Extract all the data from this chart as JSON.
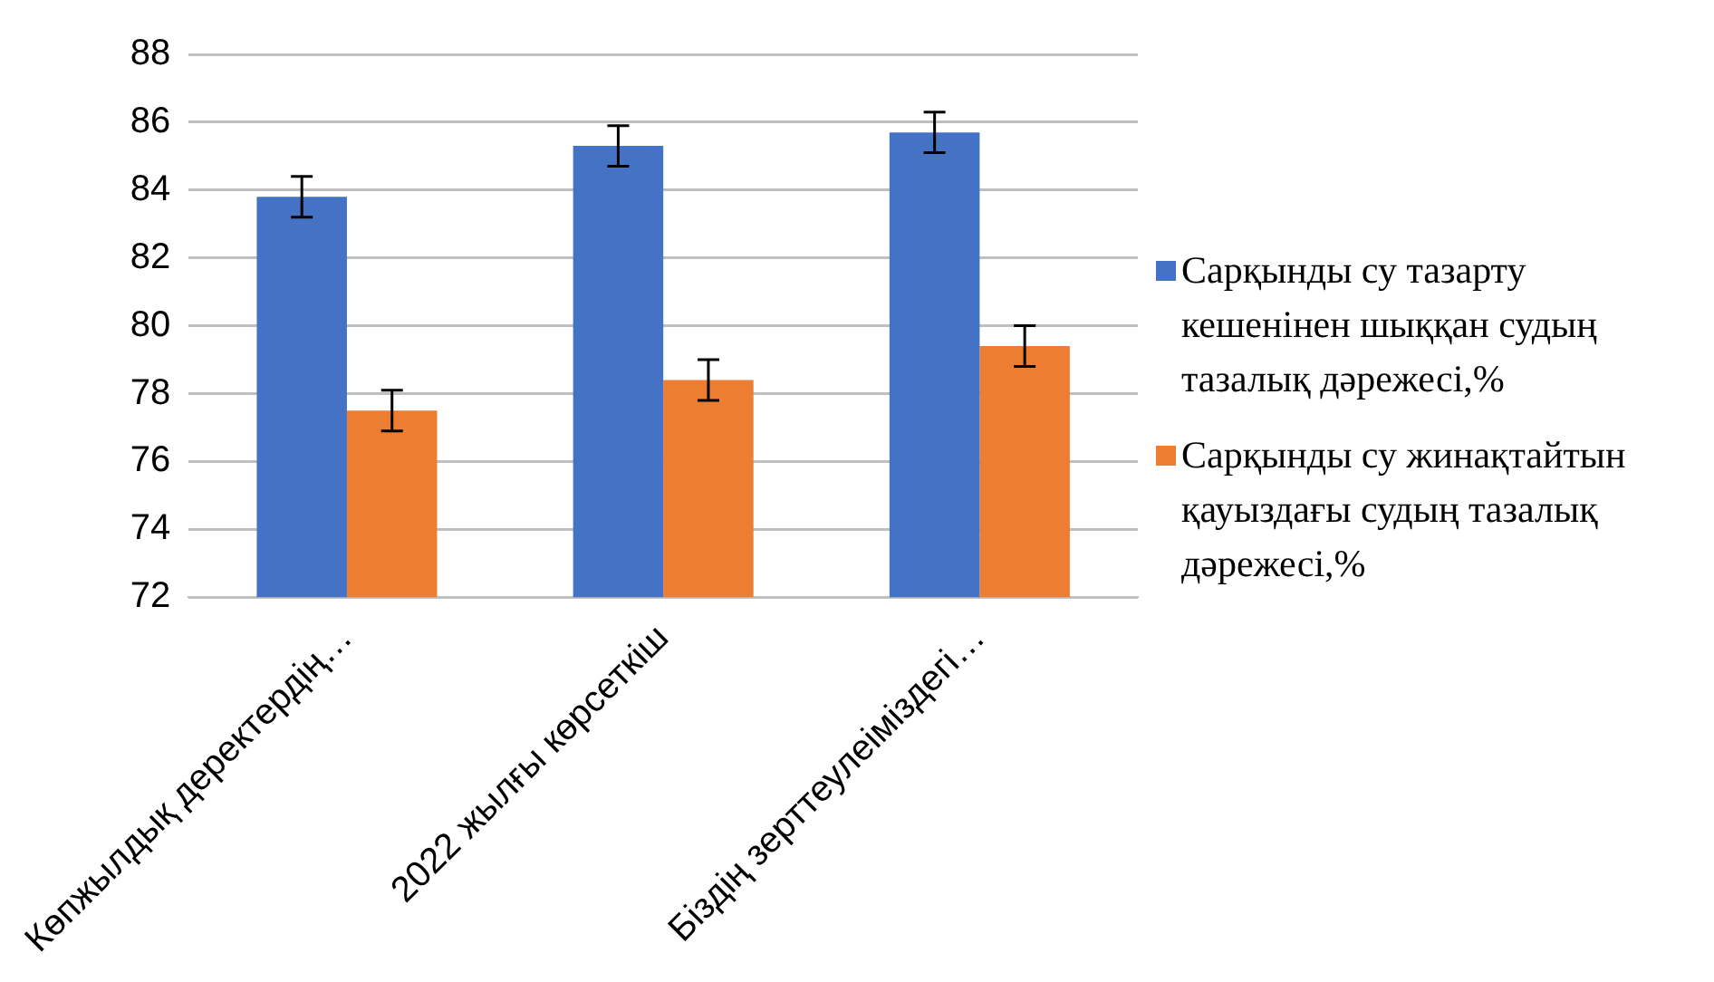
{
  "chart_data": {
    "type": "bar",
    "categories": [
      "Көпжылдық деректердің…",
      "2022 жылғы көрсеткіш",
      "Біздің зерттеулеіміздегі…"
    ],
    "series": [
      {
        "name": "Сарқынды су тазарту кешенінен шыққан судың тазалық дәрежесі,%",
        "color": "#4472c4",
        "values": [
          83.8,
          85.3,
          85.7
        ],
        "errors": [
          0.6,
          0.6,
          0.6
        ]
      },
      {
        "name": "Сарқынды су жинақтайтын қауыздағы судың тазалық дәрежесі,%",
        "color": "#ed7d31",
        "values": [
          77.5,
          78.4,
          79.4
        ],
        "errors": [
          0.6,
          0.6,
          0.6
        ]
      }
    ],
    "ylim": [
      72,
      88
    ],
    "yticks": [
      72,
      74,
      76,
      78,
      80,
      82,
      84,
      86,
      88
    ],
    "grid": "y",
    "legend": "right"
  }
}
